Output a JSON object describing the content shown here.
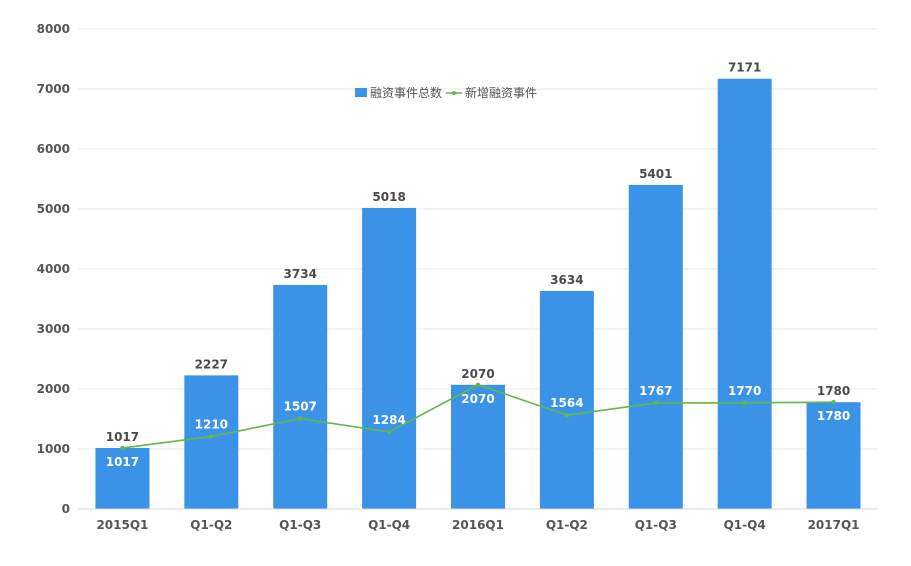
{
  "chart_data": {
    "type": "bar",
    "categories": [
      "2015Q1",
      "Q1-Q2",
      "Q1-Q3",
      "Q1-Q4",
      "2016Q1",
      "Q1-Q2",
      "Q1-Q3",
      "Q1-Q4",
      "2017Q1"
    ],
    "series": [
      {
        "name": "融资事件总数",
        "type": "bar",
        "color": "#3b93e8",
        "values": [
          1017,
          2227,
          3734,
          5018,
          2070,
          3634,
          5401,
          7171,
          1780
        ]
      },
      {
        "name": "新增融资事件",
        "type": "line",
        "color": "#63b648",
        "values": [
          1017,
          1210,
          1507,
          1284,
          2070,
          1564,
          1767,
          1770,
          1780
        ]
      }
    ],
    "yticks": [
      0,
      1000,
      2000,
      3000,
      4000,
      5000,
      6000,
      7000,
      8000
    ],
    "ylim": [
      0,
      8000
    ],
    "grid": true,
    "legend_position": "top-center",
    "title": "",
    "xlabel": "",
    "ylabel": ""
  }
}
